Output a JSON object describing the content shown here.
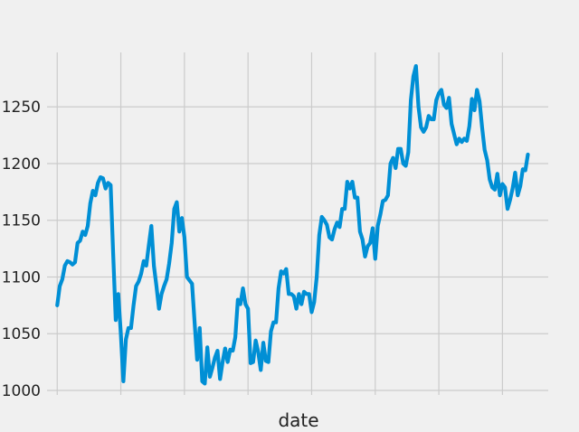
{
  "chart_data": {
    "type": "line",
    "title": "",
    "xlabel": "date",
    "ylabel": "",
    "ylim": [
      996,
      1298
    ],
    "xlim": [
      -4,
      193
    ],
    "yticks": [
      1000,
      1050,
      1100,
      1150,
      1200,
      1250
    ],
    "ytick_labels": [
      "1000",
      "1050",
      "1100",
      "1150",
      "1200",
      "1250"
    ],
    "xticks": [
      0,
      25,
      50,
      75,
      100,
      125,
      150,
      175
    ],
    "xtick_labels": [
      "",
      "",
      "",
      "",
      "",
      "",
      "",
      ""
    ],
    "grid": true,
    "colors": {
      "line": "#008fd5",
      "background": "#f0f0f0",
      "grid": "#cbcbcb"
    },
    "series": [
      {
        "values": [
          1075,
          1092,
          1098,
          1110,
          1114,
          1113,
          1111,
          1113,
          1130,
          1132,
          1140,
          1137,
          1145,
          1165,
          1176,
          1172,
          1183,
          1188,
          1187,
          1178,
          1183,
          1181,
          1120,
          1062,
          1085,
          1050,
          1008,
          1045,
          1055,
          1055,
          1075,
          1092,
          1096,
          1103,
          1114,
          1110,
          1128,
          1145,
          1110,
          1092,
          1072,
          1085,
          1092,
          1098,
          1112,
          1130,
          1160,
          1166,
          1140,
          1152,
          1135,
          1100,
          1097,
          1094,
          1060,
          1027,
          1055,
          1008,
          1006,
          1038,
          1012,
          1020,
          1029,
          1035,
          1010,
          1025,
          1037,
          1025,
          1036,
          1035,
          1047,
          1080,
          1076,
          1090,
          1076,
          1072,
          1024,
          1025,
          1044,
          1034,
          1018,
          1042,
          1026,
          1025,
          1052,
          1060,
          1060,
          1090,
          1105,
          1103,
          1107,
          1085,
          1085,
          1083,
          1072,
          1085,
          1076,
          1087,
          1085,
          1085,
          1069,
          1078,
          1100,
          1137,
          1153,
          1150,
          1146,
          1135,
          1133,
          1142,
          1148,
          1144,
          1160,
          1160,
          1184,
          1178,
          1184,
          1170,
          1170,
          1140,
          1133,
          1118,
          1127,
          1130,
          1143,
          1116,
          1145,
          1155,
          1167,
          1168,
          1172,
          1200,
          1205,
          1196,
          1213,
          1213,
          1200,
          1198,
          1210,
          1256,
          1277,
          1286,
          1250,
          1232,
          1228,
          1232,
          1242,
          1239,
          1239,
          1256,
          1262,
          1265,
          1252,
          1249,
          1258,
          1235,
          1226,
          1217,
          1222,
          1219,
          1222,
          1220,
          1233,
          1257,
          1247,
          1265,
          1255,
          1232,
          1212,
          1203,
          1186,
          1179,
          1177,
          1191,
          1172,
          1182,
          1179,
          1160,
          1168,
          1178,
          1192,
          1172,
          1180,
          1195,
          1194,
          1208
        ]
      }
    ]
  }
}
